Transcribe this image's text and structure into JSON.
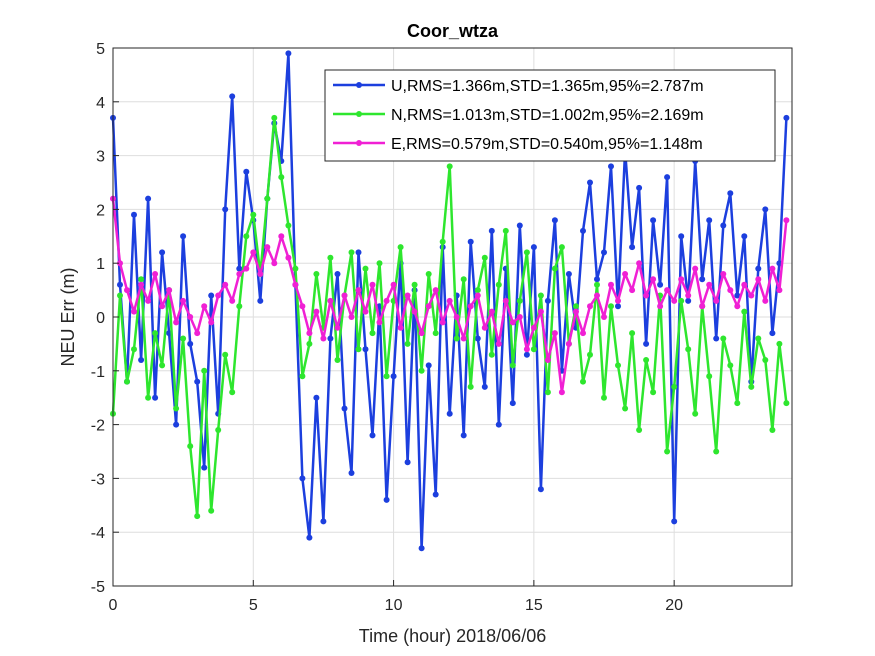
{
  "chart_data": {
    "type": "line",
    "title": "Coor_wtza",
    "xlabel": "Time (hour)  2018/06/06",
    "ylabel": "NEU Err (m)",
    "xlim": [
      0,
      24.2
    ],
    "ylim": [
      -5,
      5
    ],
    "xticks": [
      0,
      5,
      10,
      15,
      20
    ],
    "yticks": [
      -5,
      -4,
      -3,
      -2,
      -1,
      0,
      1,
      2,
      3,
      4,
      5
    ],
    "grid": true,
    "legend_position": "top-right",
    "series": [
      {
        "name": "U,RMS=1.366m,STD=1.365m,95%=2.787m",
        "color": "#1c3fde",
        "marker": "dot",
        "x": [
          0,
          0.25,
          0.5,
          0.75,
          1,
          1.25,
          1.5,
          1.75,
          2,
          2.25,
          2.5,
          2.75,
          3,
          3.25,
          3.5,
          3.75,
          4,
          4.25,
          4.5,
          4.75,
          5,
          5.25,
          5.5,
          5.75,
          6,
          6.25,
          6.5,
          6.75,
          7,
          7.25,
          7.5,
          7.75,
          8,
          8.25,
          8.5,
          8.75,
          9,
          9.25,
          9.5,
          9.75,
          10,
          10.25,
          10.5,
          10.75,
          11,
          11.25,
          11.5,
          11.75,
          12,
          12.25,
          12.5,
          12.75,
          13,
          13.25,
          13.5,
          13.75,
          14,
          14.25,
          14.5,
          14.75,
          15,
          15.25,
          15.5,
          15.75,
          16,
          16.25,
          16.5,
          16.75,
          17,
          17.25,
          17.5,
          17.75,
          18,
          18.25,
          18.5,
          18.75,
          19,
          19.25,
          19.5,
          19.75,
          20,
          20.25,
          20.5,
          20.75,
          21,
          21.25,
          21.5,
          21.75,
          22,
          22.25,
          22.5,
          22.75,
          23,
          23.25,
          23.5,
          23.75,
          24
        ],
        "y": [
          3.7,
          0.6,
          -1.2,
          1.9,
          -0.8,
          2.2,
          -1.5,
          1.2,
          -0.3,
          -2.0,
          1.5,
          -0.5,
          -1.2,
          -2.8,
          0.4,
          -1.8,
          2.0,
          4.1,
          0.9,
          2.7,
          1.8,
          0.3,
          2.2,
          3.6,
          2.9,
          4.9,
          0.6,
          -3.0,
          -4.1,
          -1.5,
          -3.8,
          -0.4,
          0.8,
          -1.7,
          -2.9,
          1.2,
          -0.6,
          -2.2,
          0.2,
          -3.4,
          -1.1,
          1.0,
          -2.7,
          0.5,
          -4.3,
          -0.9,
          -3.3,
          1.3,
          -1.8,
          0.4,
          -2.2,
          1.4,
          -0.4,
          -1.3,
          1.6,
          -2.0,
          0.9,
          -1.6,
          1.7,
          -0.7,
          1.3,
          -3.2,
          0.3,
          1.8,
          -1.0,
          0.8,
          -0.2,
          1.6,
          2.5,
          0.7,
          1.2,
          2.8,
          0.2,
          3.1,
          1.3,
          2.4,
          -0.5,
          1.8,
          0.6,
          2.6,
          -3.8,
          1.5,
          0.3,
          2.9,
          0.7,
          1.8,
          -0.4,
          1.7,
          2.3,
          0.4,
          1.5,
          -1.2,
          0.9,
          2.0,
          -0.3,
          1.0,
          3.7
        ]
      },
      {
        "name": "N,RMS=1.013m,STD=1.002m,95%=2.169m",
        "color": "#2ee62e",
        "marker": "dot",
        "x": [
          0,
          0.25,
          0.5,
          0.75,
          1,
          1.25,
          1.5,
          1.75,
          2,
          2.25,
          2.5,
          2.75,
          3,
          3.25,
          3.5,
          3.75,
          4,
          4.25,
          4.5,
          4.75,
          5,
          5.25,
          5.5,
          5.75,
          6,
          6.25,
          6.5,
          6.75,
          7,
          7.25,
          7.5,
          7.75,
          8,
          8.25,
          8.5,
          8.75,
          9,
          9.25,
          9.5,
          9.75,
          10,
          10.25,
          10.5,
          10.75,
          11,
          11.25,
          11.5,
          11.75,
          12,
          12.25,
          12.5,
          12.75,
          13,
          13.25,
          13.5,
          13.75,
          14,
          14.25,
          14.5,
          14.75,
          15,
          15.25,
          15.5,
          15.75,
          16,
          16.25,
          16.5,
          16.75,
          17,
          17.25,
          17.5,
          17.75,
          18,
          18.25,
          18.5,
          18.75,
          19,
          19.25,
          19.5,
          19.75,
          20,
          20.25,
          20.5,
          20.75,
          21,
          21.25,
          21.5,
          21.75,
          22,
          22.25,
          22.5,
          22.75,
          23,
          23.25,
          23.5,
          23.75,
          24
        ],
        "y": [
          -1.8,
          0.4,
          -1.2,
          -0.6,
          0.7,
          -1.5,
          -0.3,
          -0.9,
          0.5,
          -1.7,
          -0.4,
          -2.4,
          -3.7,
          -1.0,
          -3.6,
          -2.1,
          -0.7,
          -1.4,
          0.2,
          1.5,
          1.9,
          0.8,
          2.2,
          3.7,
          2.6,
          1.7,
          0.9,
          -1.1,
          -0.5,
          0.8,
          -0.2,
          1.1,
          -0.8,
          0.4,
          1.2,
          -0.6,
          0.9,
          -0.3,
          1.0,
          -1.1,
          0.3,
          1.3,
          -0.5,
          0.6,
          -1.0,
          0.8,
          -0.3,
          1.4,
          2.8,
          -0.4,
          0.7,
          -1.3,
          0.5,
          1.1,
          -0.7,
          0.6,
          1.6,
          -0.9,
          0.3,
          1.2,
          -0.6,
          0.4,
          -1.4,
          0.9,
          1.3,
          -0.5,
          0.2,
          -1.2,
          -0.7,
          0.6,
          -1.5,
          0.2,
          -0.9,
          -1.7,
          -0.3,
          -2.1,
          -0.8,
          -1.4,
          0.4,
          -2.5,
          -1.3,
          0.3,
          -0.6,
          -1.8,
          0.2,
          -1.1,
          -2.5,
          -0.4,
          -0.9,
          -1.6,
          0.1,
          -1.3,
          -0.4,
          -0.8,
          -2.1,
          -0.5,
          -1.6
        ]
      },
      {
        "name": "E,RMS=0.579m,STD=0.540m,95%=1.148m",
        "color": "#f020d4",
        "marker": "dot",
        "x": [
          0,
          0.25,
          0.5,
          0.75,
          1,
          1.25,
          1.5,
          1.75,
          2,
          2.25,
          2.5,
          2.75,
          3,
          3.25,
          3.5,
          3.75,
          4,
          4.25,
          4.5,
          4.75,
          5,
          5.25,
          5.5,
          5.75,
          6,
          6.25,
          6.5,
          6.75,
          7,
          7.25,
          7.5,
          7.75,
          8,
          8.25,
          8.5,
          8.75,
          9,
          9.25,
          9.5,
          9.75,
          10,
          10.25,
          10.5,
          10.75,
          11,
          11.25,
          11.5,
          11.75,
          12,
          12.25,
          12.5,
          12.75,
          13,
          13.25,
          13.5,
          13.75,
          14,
          14.25,
          14.5,
          14.75,
          15,
          15.25,
          15.5,
          15.75,
          16,
          16.25,
          16.5,
          16.75,
          17,
          17.25,
          17.5,
          17.75,
          18,
          18.25,
          18.5,
          18.75,
          19,
          19.25,
          19.5,
          19.75,
          20,
          20.25,
          20.5,
          20.75,
          21,
          21.25,
          21.5,
          21.75,
          22,
          22.25,
          22.5,
          22.75,
          23,
          23.25,
          23.5,
          23.75,
          24
        ],
        "y": [
          2.2,
          1.0,
          0.5,
          0.1,
          0.6,
          0.3,
          0.8,
          0.2,
          0.5,
          -0.1,
          0.3,
          0.0,
          -0.3,
          0.2,
          -0.1,
          0.4,
          0.6,
          0.3,
          0.8,
          0.9,
          1.2,
          0.8,
          1.3,
          1.0,
          1.5,
          1.1,
          0.6,
          0.2,
          -0.3,
          0.1,
          -0.4,
          0.3,
          -0.2,
          0.4,
          0.0,
          0.5,
          0.1,
          0.6,
          -0.1,
          0.3,
          0.6,
          -0.2,
          0.4,
          0.1,
          -0.3,
          0.2,
          0.5,
          -0.1,
          0.3,
          0.0,
          -0.4,
          0.2,
          0.4,
          -0.2,
          0.1,
          -0.5,
          0.3,
          -0.1,
          0.0,
          -0.6,
          -0.2,
          0.1,
          -0.8,
          -0.3,
          -1.4,
          -0.5,
          0.1,
          -0.3,
          0.2,
          0.4,
          0.0,
          0.6,
          0.3,
          0.8,
          0.5,
          1.0,
          0.4,
          0.7,
          0.2,
          0.5,
          0.3,
          0.7,
          0.4,
          0.9,
          0.2,
          0.6,
          0.3,
          0.8,
          0.5,
          0.2,
          0.6,
          0.4,
          0.7,
          0.3,
          0.9,
          0.5,
          1.8
        ]
      }
    ]
  }
}
